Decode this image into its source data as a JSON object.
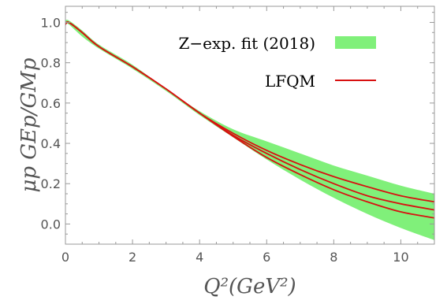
{
  "chart_data": {
    "type": "line",
    "title": "",
    "xlabel": "Q²(GeV²)",
    "ylabel": "μp GEp/GMp",
    "xlim": [
      0,
      11
    ],
    "ylim": [
      -0.1,
      1.08
    ],
    "x_ticks": [
      0,
      2,
      4,
      6,
      8,
      10
    ],
    "y_ticks": [
      0.0,
      0.2,
      0.4,
      0.6,
      0.8,
      1.0
    ],
    "x_tick_labels": [
      "0",
      "2",
      "4",
      "6",
      "8",
      "10"
    ],
    "y_tick_labels": [
      "0.0",
      "0.2",
      "0.4",
      "0.6",
      "0.8",
      "1.0"
    ],
    "grid": false,
    "legend_position": "top-right",
    "band": {
      "name": "Z−exp. fit (2018)",
      "color": "#80f07a",
      "x": [
        0,
        0.1,
        0.5,
        1,
        2,
        3,
        4,
        5,
        6,
        7,
        8,
        9,
        10,
        11
      ],
      "lower": [
        0.99,
        0.99,
        0.93,
        0.87,
        0.77,
        0.66,
        0.54,
        0.43,
        0.32,
        0.22,
        0.13,
        0.05,
        -0.02,
        -0.08
      ],
      "upper": [
        1.01,
        1.01,
        0.96,
        0.89,
        0.79,
        0.67,
        0.56,
        0.47,
        0.41,
        0.35,
        0.29,
        0.24,
        0.19,
        0.15
      ]
    },
    "series": [
      {
        "name": "LFQM",
        "color": "#d81010",
        "x": [
          0,
          0.1,
          0.5,
          1,
          2,
          3,
          4,
          5,
          6,
          7,
          8,
          9,
          10,
          11
        ],
        "y": [
          0.99,
          1.0,
          0.95,
          0.88,
          0.78,
          0.67,
          0.55,
          0.45,
          0.365,
          0.295,
          0.235,
          0.185,
          0.14,
          0.11
        ]
      },
      {
        "name": "",
        "color": "#d81010",
        "x": [
          0,
          0.1,
          0.5,
          1,
          2,
          3,
          4,
          5,
          6,
          7,
          8,
          9,
          10,
          11
        ],
        "y": [
          0.99,
          1.0,
          0.95,
          0.88,
          0.78,
          0.67,
          0.55,
          0.44,
          0.35,
          0.27,
          0.2,
          0.14,
          0.1,
          0.07
        ]
      },
      {
        "name": "",
        "color": "#d81010",
        "x": [
          0,
          0.1,
          0.5,
          1,
          2,
          3,
          4,
          5,
          6,
          7,
          8,
          9,
          10,
          11
        ],
        "y": [
          0.99,
          1.0,
          0.95,
          0.88,
          0.78,
          0.67,
          0.55,
          0.435,
          0.33,
          0.245,
          0.17,
          0.11,
          0.06,
          0.03
        ]
      }
    ]
  }
}
